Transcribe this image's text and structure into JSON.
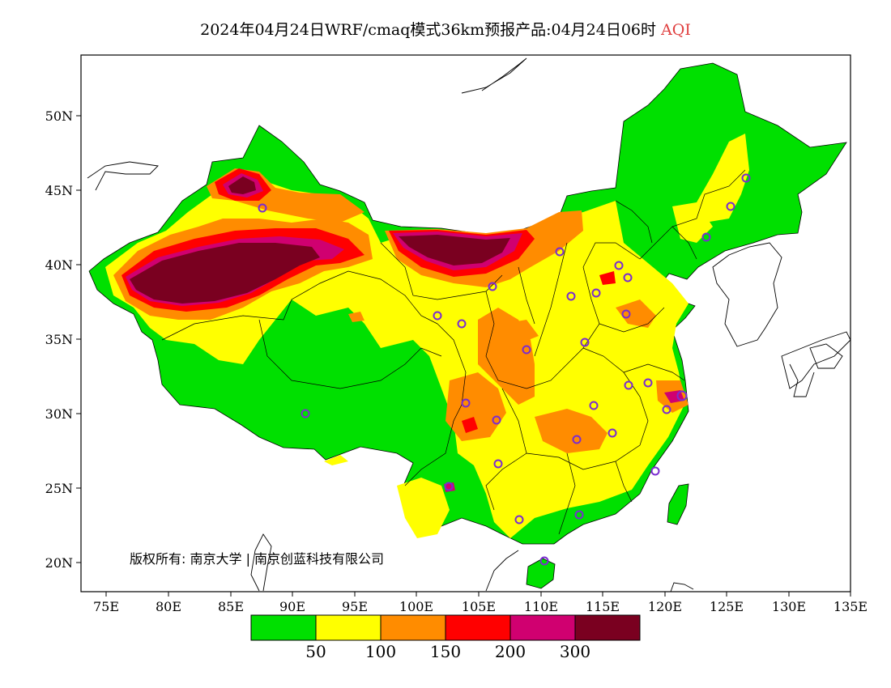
{
  "title": {
    "main": "2024年04月24日WRF/cmaq模式36km预报产品:04月24日06时",
    "variable": "AQI",
    "variable_color": "#e04040"
  },
  "axes": {
    "x_ticks": [
      "75E",
      "80E",
      "85E",
      "90E",
      "95E",
      "100E",
      "105E",
      "110E",
      "115E",
      "120E",
      "125E",
      "130E",
      "135E"
    ],
    "y_ticks": [
      "50N",
      "45N",
      "40N",
      "35N",
      "30N",
      "25N",
      "20N"
    ]
  },
  "copyright": "版权所有: 南京大学 | 南京创蓝科技有限公司",
  "legend": {
    "bins": [
      {
        "color": "#00e000"
      },
      {
        "color": "#ffff00"
      },
      {
        "color": "#ff8c00"
      },
      {
        "color": "#ff0000"
      },
      {
        "color": "#d00070"
      },
      {
        "color": "#7a0020"
      }
    ],
    "labels": [
      "50",
      "100",
      "150",
      "200",
      "300"
    ]
  },
  "colors": {
    "good": "#00e000",
    "moderate": "#ffff00",
    "unhealthy_sensitive": "#ff8c00",
    "unhealthy": "#ff0000",
    "very_unhealthy": "#d00070",
    "hazardous": "#7a0020",
    "station_marker": "#7a2cd0"
  }
}
